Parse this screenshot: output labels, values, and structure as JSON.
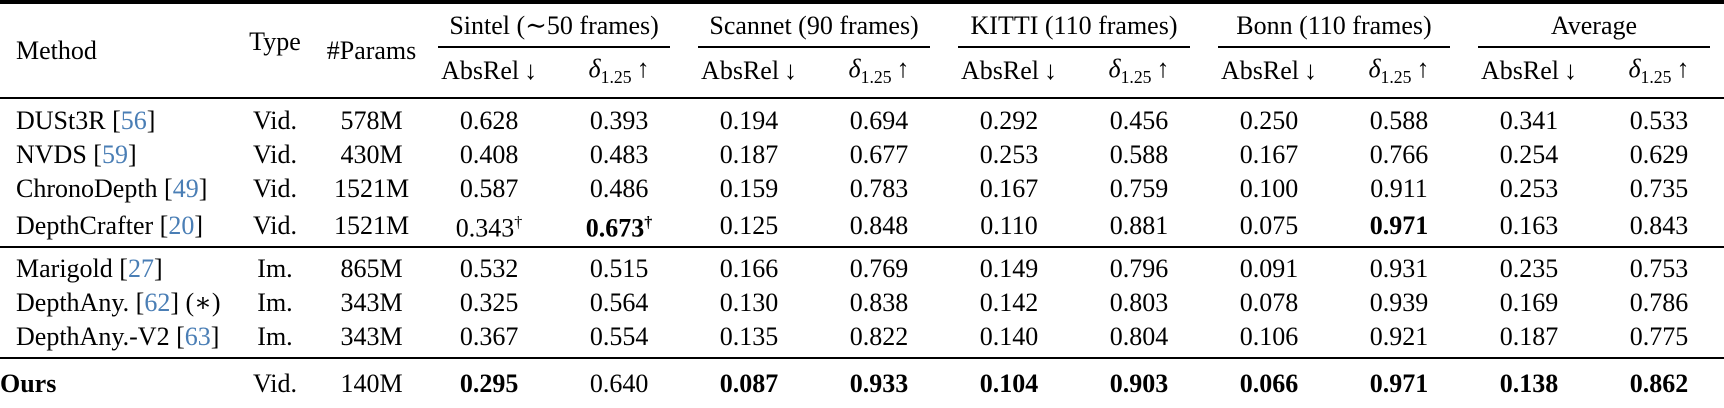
{
  "colors": {
    "citation_blue": "#4a7eb5",
    "text": "#000000",
    "rule": "#000000",
    "background": "#ffffff"
  },
  "header": {
    "method": "Method",
    "type": "Type",
    "params": "#Params",
    "groups": [
      {
        "label": "Sintel (∼50 frames)"
      },
      {
        "label": "Scannet (90 frames)"
      },
      {
        "label": "KITTI (110 frames)"
      },
      {
        "label": "Bonn (110 frames)"
      },
      {
        "label": "Average"
      }
    ],
    "metrics": {
      "absrel": "AbsRel",
      "down_arrow": "↓",
      "delta": "δ",
      "delta_sub": "1.25",
      "up_arrow": "↑"
    }
  },
  "sections": [
    {
      "rows": [
        {
          "method": "DUSt3R",
          "cite": "56",
          "suffix": "",
          "bold": false,
          "type": "Vid.",
          "params": "578M",
          "values": [
            {
              "text": "0.628",
              "bold": false,
              "dagger": false
            },
            {
              "text": "0.393",
              "bold": false,
              "dagger": false
            },
            {
              "text": "0.194",
              "bold": false,
              "dagger": false
            },
            {
              "text": "0.694",
              "bold": false,
              "dagger": false
            },
            {
              "text": "0.292",
              "bold": false,
              "dagger": false
            },
            {
              "text": "0.456",
              "bold": false,
              "dagger": false
            },
            {
              "text": "0.250",
              "bold": false,
              "dagger": false
            },
            {
              "text": "0.588",
              "bold": false,
              "dagger": false
            },
            {
              "text": "0.341",
              "bold": false,
              "dagger": false
            },
            {
              "text": "0.533",
              "bold": false,
              "dagger": false
            }
          ]
        },
        {
          "method": "NVDS",
          "cite": "59",
          "suffix": "",
          "bold": false,
          "type": "Vid.",
          "params": "430M",
          "values": [
            {
              "text": "0.408",
              "bold": false,
              "dagger": false
            },
            {
              "text": "0.483",
              "bold": false,
              "dagger": false
            },
            {
              "text": "0.187",
              "bold": false,
              "dagger": false
            },
            {
              "text": "0.677",
              "bold": false,
              "dagger": false
            },
            {
              "text": "0.253",
              "bold": false,
              "dagger": false
            },
            {
              "text": "0.588",
              "bold": false,
              "dagger": false
            },
            {
              "text": "0.167",
              "bold": false,
              "dagger": false
            },
            {
              "text": "0.766",
              "bold": false,
              "dagger": false
            },
            {
              "text": "0.254",
              "bold": false,
              "dagger": false
            },
            {
              "text": "0.629",
              "bold": false,
              "dagger": false
            }
          ]
        },
        {
          "method": "ChronoDepth",
          "cite": "49",
          "suffix": "",
          "bold": false,
          "type": "Vid.",
          "params": "1521M",
          "values": [
            {
              "text": "0.587",
              "bold": false,
              "dagger": false
            },
            {
              "text": "0.486",
              "bold": false,
              "dagger": false
            },
            {
              "text": "0.159",
              "bold": false,
              "dagger": false
            },
            {
              "text": "0.783",
              "bold": false,
              "dagger": false
            },
            {
              "text": "0.167",
              "bold": false,
              "dagger": false
            },
            {
              "text": "0.759",
              "bold": false,
              "dagger": false
            },
            {
              "text": "0.100",
              "bold": false,
              "dagger": false
            },
            {
              "text": "0.911",
              "bold": false,
              "dagger": false
            },
            {
              "text": "0.253",
              "bold": false,
              "dagger": false
            },
            {
              "text": "0.735",
              "bold": false,
              "dagger": false
            }
          ]
        },
        {
          "method": "DepthCrafter",
          "cite": "20",
          "suffix": "",
          "bold": false,
          "type": "Vid.",
          "params": "1521M",
          "values": [
            {
              "text": "0.343",
              "bold": false,
              "dagger": true
            },
            {
              "text": "0.673",
              "bold": true,
              "dagger": true
            },
            {
              "text": "0.125",
              "bold": false,
              "dagger": false
            },
            {
              "text": "0.848",
              "bold": false,
              "dagger": false
            },
            {
              "text": "0.110",
              "bold": false,
              "dagger": false
            },
            {
              "text": "0.881",
              "bold": false,
              "dagger": false
            },
            {
              "text": "0.075",
              "bold": false,
              "dagger": false
            },
            {
              "text": "0.971",
              "bold": true,
              "dagger": false
            },
            {
              "text": "0.163",
              "bold": false,
              "dagger": false
            },
            {
              "text": "0.843",
              "bold": false,
              "dagger": false
            }
          ]
        }
      ]
    },
    {
      "rows": [
        {
          "method": "Marigold",
          "cite": "27",
          "suffix": "",
          "bold": false,
          "type": "Im.",
          "params": "865M",
          "values": [
            {
              "text": "0.532",
              "bold": false,
              "dagger": false
            },
            {
              "text": "0.515",
              "bold": false,
              "dagger": false
            },
            {
              "text": "0.166",
              "bold": false,
              "dagger": false
            },
            {
              "text": "0.769",
              "bold": false,
              "dagger": false
            },
            {
              "text": "0.149",
              "bold": false,
              "dagger": false
            },
            {
              "text": "0.796",
              "bold": false,
              "dagger": false
            },
            {
              "text": "0.091",
              "bold": false,
              "dagger": false
            },
            {
              "text": "0.931",
              "bold": false,
              "dagger": false
            },
            {
              "text": "0.235",
              "bold": false,
              "dagger": false
            },
            {
              "text": "0.753",
              "bold": false,
              "dagger": false
            }
          ]
        },
        {
          "method": "DepthAny.",
          "cite": "62",
          "suffix": " (∗)",
          "bold": false,
          "type": "Im.",
          "params": "343M",
          "values": [
            {
              "text": "0.325",
              "bold": false,
              "dagger": false
            },
            {
              "text": "0.564",
              "bold": false,
              "dagger": false
            },
            {
              "text": "0.130",
              "bold": false,
              "dagger": false
            },
            {
              "text": "0.838",
              "bold": false,
              "dagger": false
            },
            {
              "text": "0.142",
              "bold": false,
              "dagger": false
            },
            {
              "text": "0.803",
              "bold": false,
              "dagger": false
            },
            {
              "text": "0.078",
              "bold": false,
              "dagger": false
            },
            {
              "text": "0.939",
              "bold": false,
              "dagger": false
            },
            {
              "text": "0.169",
              "bold": false,
              "dagger": false
            },
            {
              "text": "0.786",
              "bold": false,
              "dagger": false
            }
          ]
        },
        {
          "method": "DepthAny.-V2",
          "cite": "63",
          "suffix": "",
          "bold": false,
          "type": "Im.",
          "params": "343M",
          "values": [
            {
              "text": "0.367",
              "bold": false,
              "dagger": false
            },
            {
              "text": "0.554",
              "bold": false,
              "dagger": false
            },
            {
              "text": "0.135",
              "bold": false,
              "dagger": false
            },
            {
              "text": "0.822",
              "bold": false,
              "dagger": false
            },
            {
              "text": "0.140",
              "bold": false,
              "dagger": false
            },
            {
              "text": "0.804",
              "bold": false,
              "dagger": false
            },
            {
              "text": "0.106",
              "bold": false,
              "dagger": false
            },
            {
              "text": "0.921",
              "bold": false,
              "dagger": false
            },
            {
              "text": "0.187",
              "bold": false,
              "dagger": false
            },
            {
              "text": "0.775",
              "bold": false,
              "dagger": false
            }
          ]
        }
      ]
    },
    {
      "rows": [
        {
          "method": "Ours",
          "cite": "",
          "suffix": "",
          "bold": true,
          "type": "Vid.",
          "params": "140M",
          "values": [
            {
              "text": "0.295",
              "bold": true,
              "dagger": false
            },
            {
              "text": "0.640",
              "bold": false,
              "dagger": false
            },
            {
              "text": "0.087",
              "bold": true,
              "dagger": false
            },
            {
              "text": "0.933",
              "bold": true,
              "dagger": false
            },
            {
              "text": "0.104",
              "bold": true,
              "dagger": false
            },
            {
              "text": "0.903",
              "bold": true,
              "dagger": false
            },
            {
              "text": "0.066",
              "bold": true,
              "dagger": false
            },
            {
              "text": "0.971",
              "bold": true,
              "dagger": false
            },
            {
              "text": "0.138",
              "bold": true,
              "dagger": false
            },
            {
              "text": "0.862",
              "bold": true,
              "dagger": false
            }
          ]
        }
      ]
    }
  ]
}
